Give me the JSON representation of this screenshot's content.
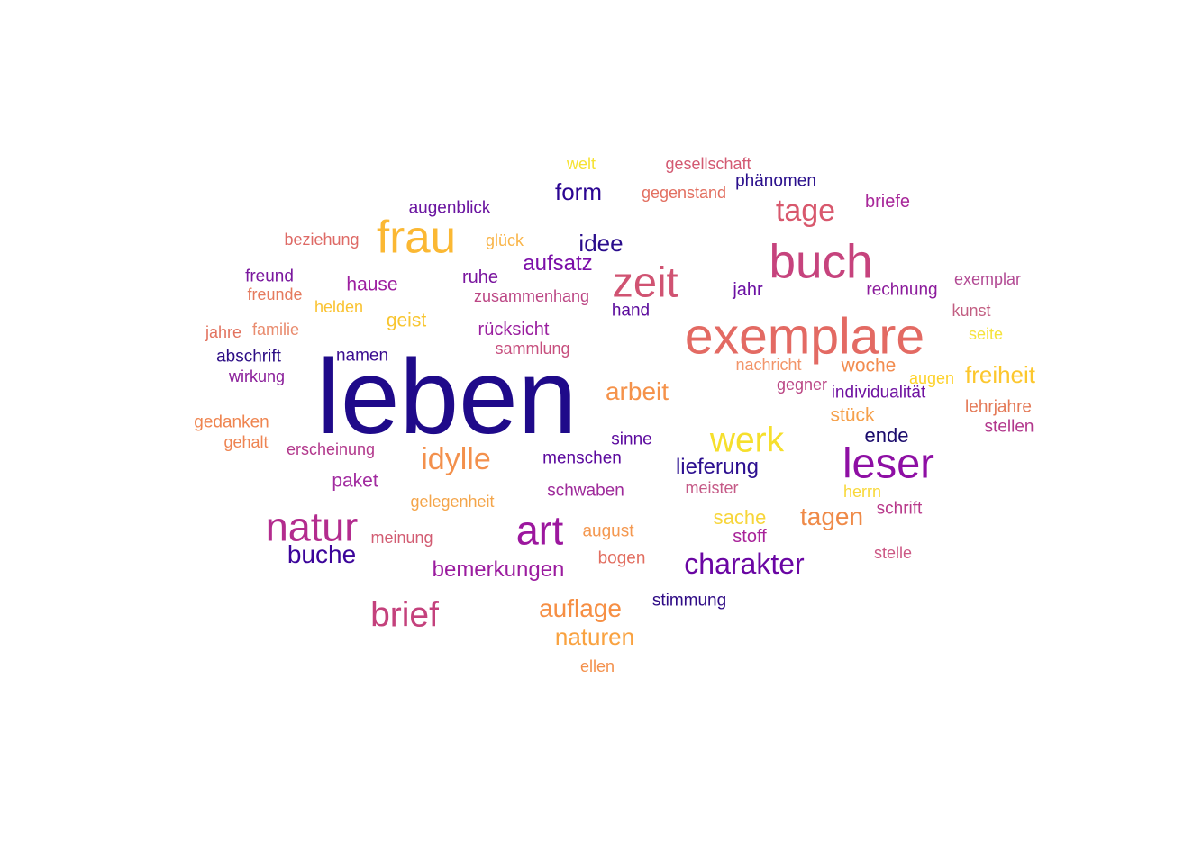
{
  "word_cloud": {
    "words": [
      {
        "text": "leben",
        "weight": 100,
        "color": "#1f0a8a"
      },
      {
        "text": "exemplare",
        "weight": 48,
        "color": "#e36a63"
      },
      {
        "text": "buch",
        "weight": 45,
        "color": "#c6437d"
      },
      {
        "text": "frau",
        "weight": 43,
        "color": "#fbb833"
      },
      {
        "text": "zeit",
        "weight": 40,
        "color": "#d05372"
      },
      {
        "text": "leser",
        "weight": 40,
        "color": "#8e0fa4"
      },
      {
        "text": "natur",
        "weight": 38,
        "color": "#b32c8e"
      },
      {
        "text": "art",
        "weight": 38,
        "color": "#9c179e"
      },
      {
        "text": "werk",
        "weight": 33,
        "color": "#f6df2c"
      },
      {
        "text": "brief",
        "weight": 33,
        "color": "#c4417c"
      },
      {
        "text": "idylle",
        "weight": 29,
        "color": "#f3904c"
      },
      {
        "text": "tage",
        "weight": 29,
        "color": "#d8586d"
      },
      {
        "text": "charakter",
        "weight": 27,
        "color": "#6a06a3"
      },
      {
        "text": "buche",
        "weight": 24,
        "color": "#3b049a"
      },
      {
        "text": "auflage",
        "weight": 24,
        "color": "#f68f44"
      },
      {
        "text": "arbeit",
        "weight": 24,
        "color": "#f5924a"
      },
      {
        "text": "tagen",
        "weight": 24,
        "color": "#ef8a48"
      },
      {
        "text": "naturen",
        "weight": 22,
        "color": "#f9a240"
      },
      {
        "text": "idee",
        "weight": 22,
        "color": "#2a0d8c"
      },
      {
        "text": "form",
        "weight": 22,
        "color": "#2b0592"
      },
      {
        "text": "freiheit",
        "weight": 22,
        "color": "#fcc72e"
      },
      {
        "text": "lieferung",
        "weight": 20,
        "color": "#2c0f90"
      },
      {
        "text": "bemerkungen",
        "weight": 20,
        "color": "#9b1c9f"
      },
      {
        "text": "aufsatz",
        "weight": 20,
        "color": "#7b0ea8"
      },
      {
        "text": "sache",
        "weight": 19,
        "color": "#f7d53a"
      },
      {
        "text": "ende",
        "weight": 19,
        "color": "#1a0b6c"
      },
      {
        "text": "stück",
        "weight": 18,
        "color": "#f5a04b"
      },
      {
        "text": "woche",
        "weight": 18,
        "color": "#f28c4f"
      },
      {
        "text": "hause",
        "weight": 18,
        "color": "#9d1fa0"
      },
      {
        "text": "paket",
        "weight": 18,
        "color": "#a22ca0"
      },
      {
        "text": "geist",
        "weight": 18,
        "color": "#f8c52f"
      },
      {
        "text": "rücksicht",
        "weight": 17,
        "color": "#9a1f9f"
      },
      {
        "text": "stoff",
        "weight": 17,
        "color": "#a9249a"
      },
      {
        "text": "briefe",
        "weight": 17,
        "color": "#a8289a"
      },
      {
        "text": "ruhe",
        "weight": 17,
        "color": "#7a159e"
      },
      {
        "text": "jahr",
        "weight": 17,
        "color": "#6b10a3"
      },
      {
        "text": "sinne",
        "weight": 16,
        "color": "#5c0a9e"
      },
      {
        "text": "menschen",
        "weight": 16,
        "color": "#5a079d"
      },
      {
        "text": "schwaben",
        "weight": 16,
        "color": "#9e2a9a"
      },
      {
        "text": "stimmung",
        "weight": 16,
        "color": "#2f0b85"
      },
      {
        "text": "individualität",
        "weight": 16,
        "color": "#6f13a1"
      },
      {
        "text": "rechnung",
        "weight": 16,
        "color": "#8b1a9b"
      },
      {
        "text": "abschrift",
        "weight": 16,
        "color": "#2c0d85"
      },
      {
        "text": "augenblick",
        "weight": 16,
        "color": "#6a14a0"
      },
      {
        "text": "phänomen",
        "weight": 16,
        "color": "#2a0f8c"
      },
      {
        "text": "freund",
        "weight": 16,
        "color": "#7a179e"
      },
      {
        "text": "hand",
        "weight": 16,
        "color": "#5a0a9c"
      },
      {
        "text": "namen",
        "weight": 16,
        "color": "#3a0d90"
      },
      {
        "text": "schrift",
        "weight": 16,
        "color": "#b8388a"
      },
      {
        "text": "stellen",
        "weight": 16,
        "color": "#b2378c"
      },
      {
        "text": "lehrjahre",
        "weight": 16,
        "color": "#e47a58"
      },
      {
        "text": "gedanken",
        "weight": 16,
        "color": "#ef8550"
      },
      {
        "text": "august",
        "weight": 16,
        "color": "#f49850"
      },
      {
        "text": "bogen",
        "weight": 16,
        "color": "#e26e60"
      },
      {
        "text": "gelegenheit",
        "weight": 15,
        "color": "#f4a54a"
      },
      {
        "text": "sammlung",
        "weight": 15,
        "color": "#c74f7e"
      },
      {
        "text": "zusammenhang",
        "weight": 15,
        "color": "#bc4785"
      },
      {
        "text": "erscheinung",
        "weight": 15,
        "color": "#b2388c"
      },
      {
        "text": "meinung",
        "weight": 15,
        "color": "#d25c72"
      },
      {
        "text": "wirkung",
        "weight": 15,
        "color": "#8a1e9a"
      },
      {
        "text": "beziehung",
        "weight": 15,
        "color": "#de6a66"
      },
      {
        "text": "freunde",
        "weight": 15,
        "color": "#e57a5e"
      },
      {
        "text": "gesellschaft",
        "weight": 15,
        "color": "#d35a72"
      },
      {
        "text": "gegenstand",
        "weight": 15,
        "color": "#e26f60"
      },
      {
        "text": "nachricht",
        "weight": 15,
        "color": "#f2956a"
      },
      {
        "text": "gegner",
        "weight": 15,
        "color": "#bb4785"
      },
      {
        "text": "meister",
        "weight": 15,
        "color": "#c55a87"
      },
      {
        "text": "exemplar",
        "weight": 15,
        "color": "#b34c95"
      },
      {
        "text": "kunst",
        "weight": 15,
        "color": "#c25e82"
      },
      {
        "text": "stelle",
        "weight": 15,
        "color": "#cc5784"
      },
      {
        "text": "familie",
        "weight": 15,
        "color": "#e98c6f"
      },
      {
        "text": "jahre",
        "weight": 15,
        "color": "#e2735f"
      },
      {
        "text": "gehalt",
        "weight": 15,
        "color": "#ee8452"
      },
      {
        "text": "helden",
        "weight": 15,
        "color": "#fac332"
      },
      {
        "text": "glück",
        "weight": 15,
        "color": "#f9b54a"
      },
      {
        "text": "welt",
        "weight": 15,
        "color": "#f6e232"
      },
      {
        "text": "augen",
        "weight": 15,
        "color": "#fdd22b"
      },
      {
        "text": "seite",
        "weight": 15,
        "color": "#f6e33b"
      },
      {
        "text": "herrn",
        "weight": 15,
        "color": "#f8d83a"
      },
      {
        "text": "ellen",
        "weight": 15,
        "color": "#f3904c"
      }
    ]
  }
}
